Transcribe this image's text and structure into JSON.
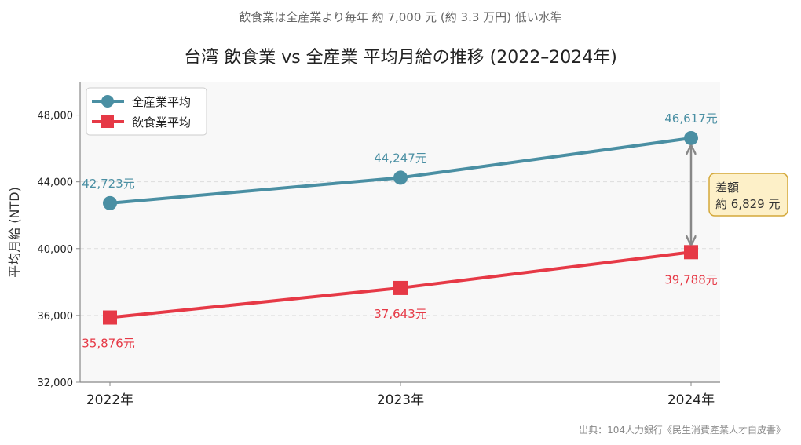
{
  "chart_data": {
    "type": "line",
    "title": "台湾 飲食業 vs 全産業 平均月給の推移 (2022–2024年)",
    "subtitle": "飲食業は全産業より毎年 約 7,000 元 (約 3.3 万円) 低い水準",
    "xlabel": "",
    "ylabel": "平均月給 (NTD)",
    "categories": [
      "2022年",
      "2023年",
      "2024年"
    ],
    "ylim": [
      32000,
      50000
    ],
    "yticks": [
      32000,
      36000,
      40000,
      44000,
      48000
    ],
    "ytick_labels": [
      "32,000",
      "36,000",
      "40,000",
      "44,000",
      "48,000"
    ],
    "grid": "horizontal dashed",
    "legend": "top-left",
    "series": [
      {
        "name": "全産業平均",
        "values": [
          42723,
          44247,
          46617
        ],
        "labels": [
          "42,723元",
          "44,247元",
          "46,617元"
        ],
        "color": "#4a8fa3",
        "marker": "circle"
      },
      {
        "name": "飲食業平均",
        "values": [
          35876,
          37643,
          39788
        ],
        "labels": [
          "35,876元",
          "37,643元",
          "39,788元"
        ],
        "color": "#e63946",
        "marker": "square"
      }
    ],
    "annotation": {
      "line1": "差額",
      "line2": "約 6,829 元"
    },
    "source": "出典：104人力銀行《民生消費產業人才白皮書》"
  }
}
